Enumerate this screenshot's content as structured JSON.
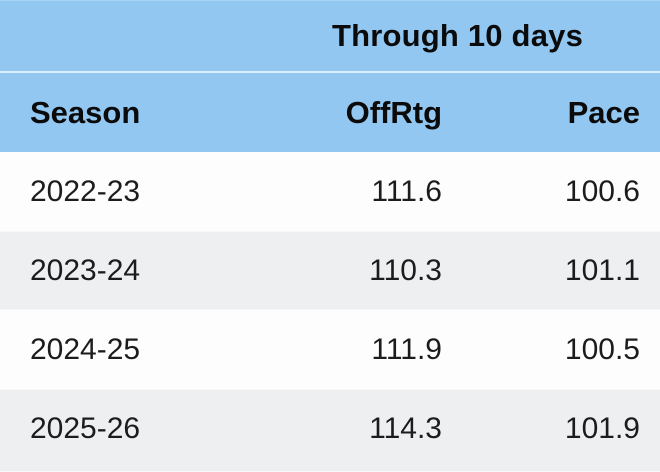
{
  "table": {
    "spanner_label": "Through 10 days",
    "columns": {
      "season": "Season",
      "offrtg": "OffRtg",
      "pace": "Pace"
    },
    "rows": [
      {
        "season": "2022-23",
        "offrtg": "111.6",
        "pace": "100.6"
      },
      {
        "season": "2023-24",
        "offrtg": "110.3",
        "pace": "101.1"
      },
      {
        "season": "2024-25",
        "offrtg": "111.9",
        "pace": "100.5"
      },
      {
        "season": "2025-26",
        "offrtg": "114.3",
        "pace": "101.9"
      }
    ]
  },
  "colors": {
    "header_blue": "#92C7F2",
    "header_separator": "#DCEDFC",
    "row_white": "#FDFDFE",
    "row_gray": "#EEEFF0",
    "header_text": "#0B0B0B",
    "data_text": "#1C1C1C"
  },
  "chart_data": {
    "type": "table",
    "title": "Through 10 days",
    "columns": [
      "Season",
      "OffRtg",
      "Pace"
    ],
    "rows": [
      [
        "2022-23",
        111.6,
        100.6
      ],
      [
        "2023-24",
        110.3,
        101.1
      ],
      [
        "2024-25",
        111.9,
        100.5
      ],
      [
        "2025-26",
        114.3,
        101.9
      ]
    ]
  }
}
